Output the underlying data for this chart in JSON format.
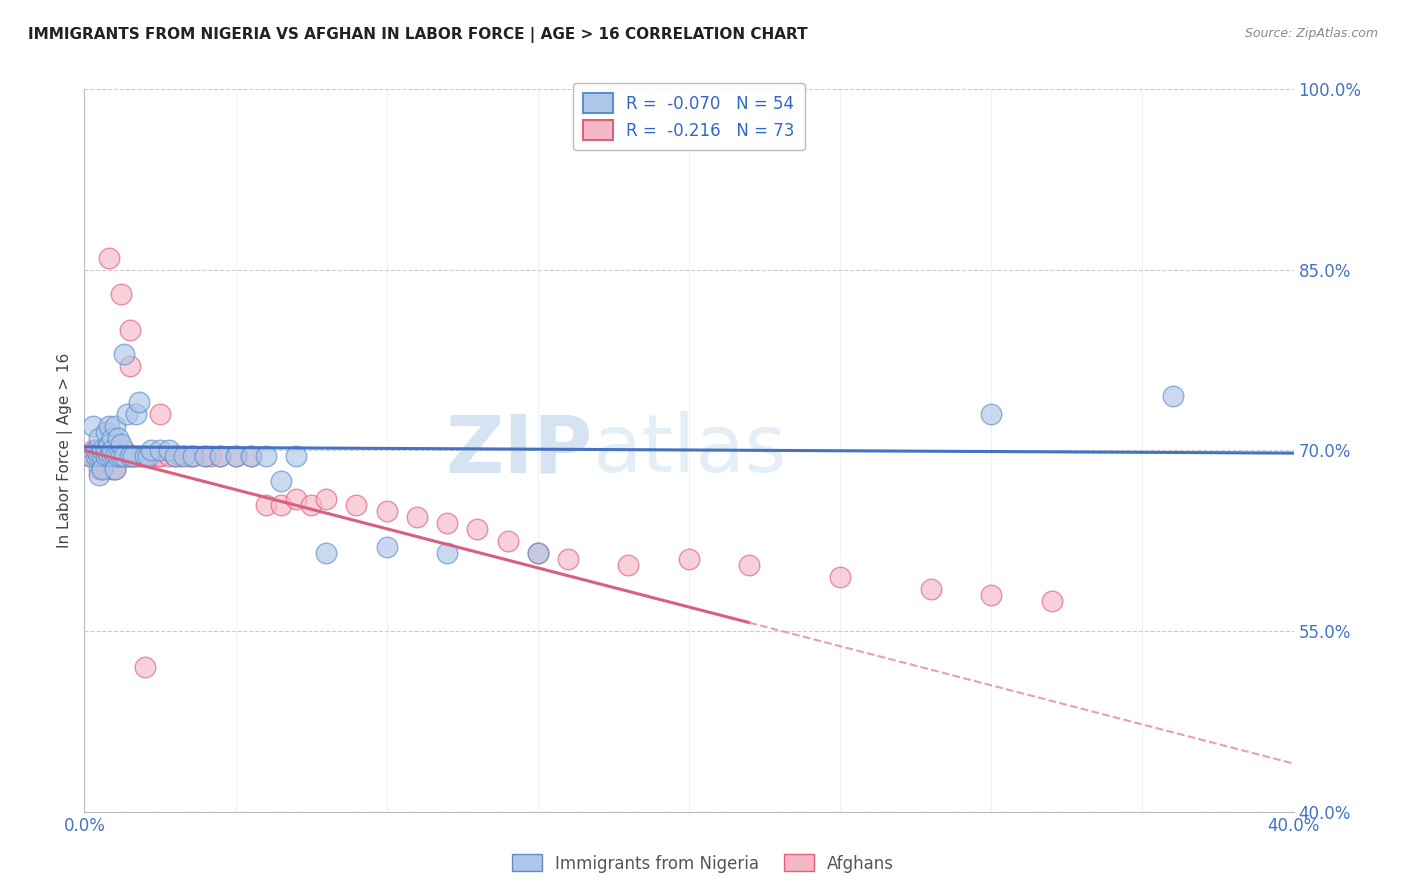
{
  "title": "IMMIGRANTS FROM NIGERIA VS AFGHAN IN LABOR FORCE | AGE > 16 CORRELATION CHART",
  "source": "Source: ZipAtlas.com",
  "ylabel": "In Labor Force | Age > 16",
  "xlim": [
    0.0,
    0.4
  ],
  "ylim": [
    0.4,
    1.0
  ],
  "yticks": [
    0.4,
    0.55,
    0.7,
    0.85,
    1.0
  ],
  "xtick_vals": [
    0.0,
    0.05,
    0.1,
    0.15,
    0.2,
    0.25,
    0.3,
    0.35,
    0.4
  ],
  "nigeria_color_face": "#aec6e8",
  "nigeria_color_edge": "#5b8fc9",
  "afghan_color_face": "#f5b8c8",
  "afghan_color_edge": "#e0607a",
  "nigeria_R": -0.07,
  "nigeria_N": 54,
  "afghan_R": -0.216,
  "afghan_N": 73,
  "trend_nigeria_color": "#4472c4",
  "trend_afghan_solid_color": "#d95f7f",
  "trend_afghan_dash_color": "#e8a0b0",
  "watermark_zip": "ZIP",
  "watermark_atlas": "atlas",
  "grid_color": "#cccccc",
  "nigeria_x": [
    0.002,
    0.003,
    0.004,
    0.004,
    0.005,
    0.005,
    0.005,
    0.006,
    0.006,
    0.006,
    0.007,
    0.007,
    0.007,
    0.008,
    0.008,
    0.008,
    0.009,
    0.009,
    0.009,
    0.01,
    0.01,
    0.01,
    0.011,
    0.011,
    0.012,
    0.012,
    0.013,
    0.013,
    0.014,
    0.015,
    0.016,
    0.017,
    0.018,
    0.02,
    0.021,
    0.022,
    0.025,
    0.028,
    0.03,
    0.033,
    0.036,
    0.04,
    0.045,
    0.05,
    0.055,
    0.06,
    0.065,
    0.07,
    0.08,
    0.1,
    0.12,
    0.15,
    0.3,
    0.36
  ],
  "nigeria_y": [
    0.695,
    0.72,
    0.695,
    0.7,
    0.695,
    0.68,
    0.71,
    0.695,
    0.7,
    0.685,
    0.695,
    0.715,
    0.7,
    0.695,
    0.72,
    0.705,
    0.695,
    0.71,
    0.7,
    0.695,
    0.72,
    0.685,
    0.695,
    0.71,
    0.695,
    0.705,
    0.78,
    0.695,
    0.73,
    0.695,
    0.695,
    0.73,
    0.74,
    0.695,
    0.695,
    0.7,
    0.7,
    0.7,
    0.695,
    0.695,
    0.695,
    0.695,
    0.695,
    0.695,
    0.695,
    0.695,
    0.675,
    0.695,
    0.615,
    0.62,
    0.615,
    0.615,
    0.73,
    0.745
  ],
  "afghan_x": [
    0.002,
    0.003,
    0.003,
    0.004,
    0.004,
    0.005,
    0.005,
    0.005,
    0.006,
    0.006,
    0.006,
    0.007,
    0.007,
    0.007,
    0.008,
    0.008,
    0.008,
    0.009,
    0.009,
    0.009,
    0.01,
    0.01,
    0.01,
    0.011,
    0.011,
    0.012,
    0.012,
    0.013,
    0.013,
    0.014,
    0.015,
    0.015,
    0.016,
    0.017,
    0.018,
    0.019,
    0.02,
    0.022,
    0.024,
    0.025,
    0.028,
    0.03,
    0.032,
    0.035,
    0.036,
    0.04,
    0.042,
    0.045,
    0.05,
    0.055,
    0.06,
    0.065,
    0.07,
    0.075,
    0.08,
    0.09,
    0.1,
    0.11,
    0.12,
    0.13,
    0.14,
    0.15,
    0.16,
    0.18,
    0.2,
    0.22,
    0.25,
    0.28,
    0.3,
    0.32,
    0.015,
    0.02,
    0.025
  ],
  "afghan_y": [
    0.695,
    0.7,
    0.695,
    0.695,
    0.7,
    0.7,
    0.695,
    0.685,
    0.695,
    0.7,
    0.685,
    0.695,
    0.7,
    0.685,
    0.695,
    0.86,
    0.695,
    0.695,
    0.7,
    0.685,
    0.695,
    0.7,
    0.685,
    0.695,
    0.7,
    0.695,
    0.83,
    0.695,
    0.7,
    0.695,
    0.695,
    0.8,
    0.695,
    0.695,
    0.695,
    0.695,
    0.695,
    0.695,
    0.695,
    0.695,
    0.695,
    0.695,
    0.695,
    0.695,
    0.695,
    0.695,
    0.695,
    0.695,
    0.695,
    0.695,
    0.655,
    0.655,
    0.66,
    0.655,
    0.66,
    0.655,
    0.65,
    0.645,
    0.64,
    0.635,
    0.625,
    0.615,
    0.61,
    0.605,
    0.61,
    0.605,
    0.595,
    0.585,
    0.58,
    0.575,
    0.77,
    0.52,
    0.73
  ]
}
